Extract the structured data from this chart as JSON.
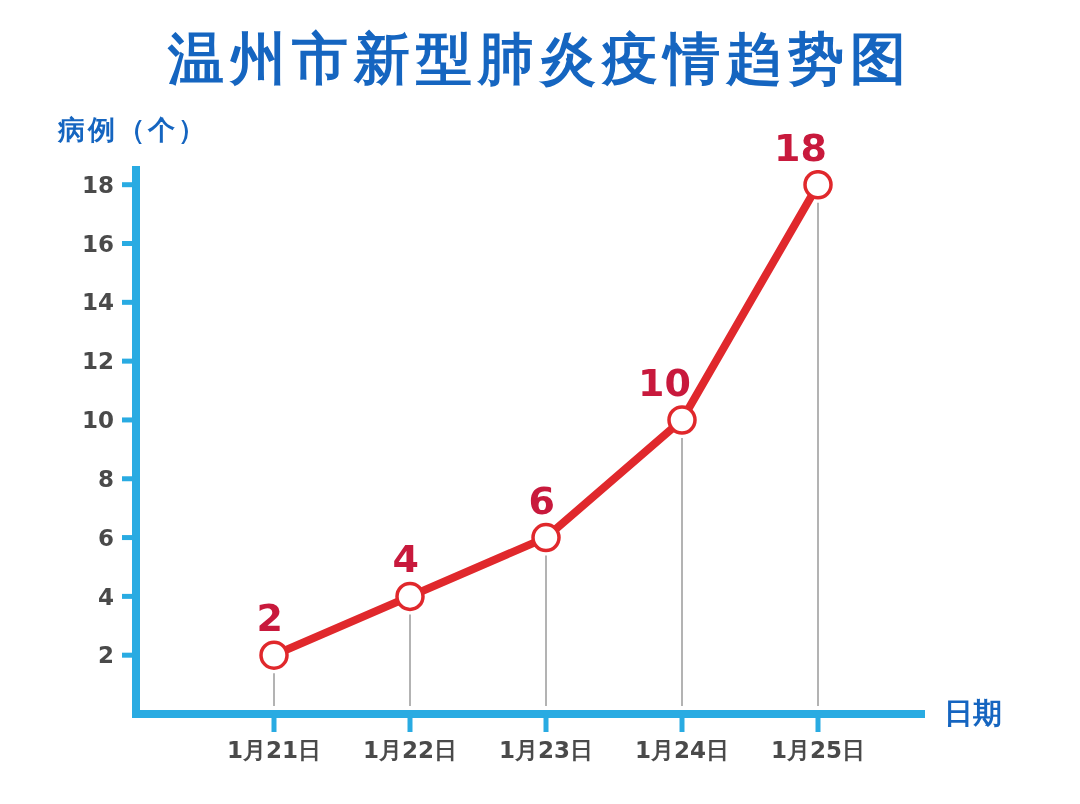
{
  "chart_data": {
    "type": "line",
    "title": "温州市新型肺炎疫情趋势图",
    "ylabel": "病例（个）",
    "xlabel": "日期",
    "categories": [
      "1月21日",
      "1月22日",
      "1月23日",
      "1月24日",
      "1月25日"
    ],
    "series": [
      {
        "color": "#e0282c",
        "values": [
          2,
          4,
          6,
          10,
          18
        ]
      }
    ],
    "ylim": [
      0,
      18.5
    ],
    "yticks": [
      2,
      4,
      6,
      8,
      10,
      12,
      14,
      16,
      18
    ],
    "data_labels": true,
    "marker": "circle",
    "line_style": "solid"
  }
}
